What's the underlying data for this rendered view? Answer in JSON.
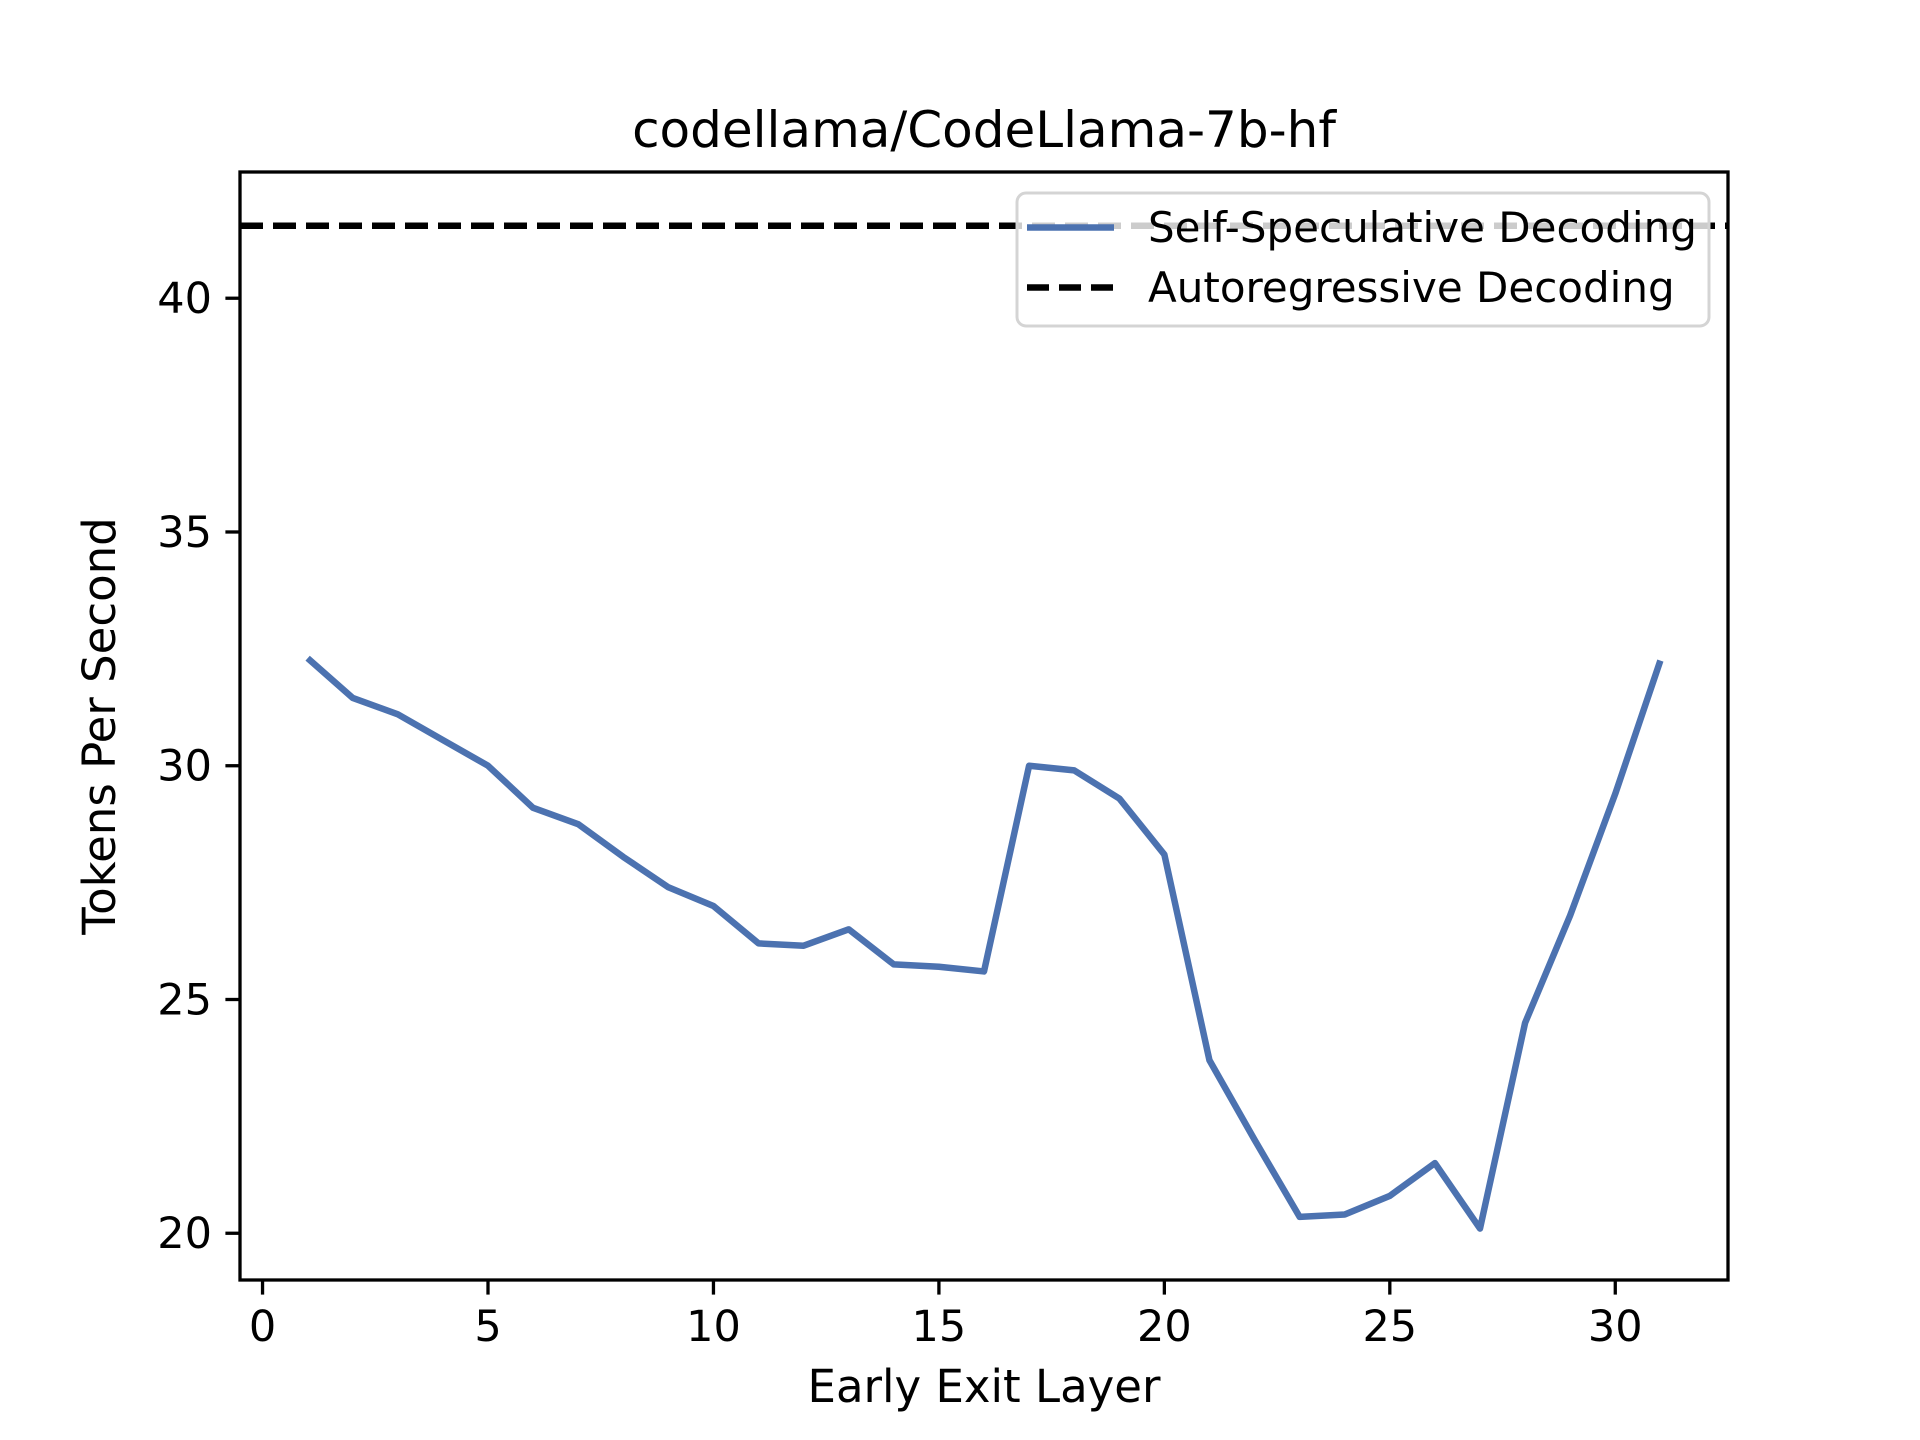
{
  "title": "codellama/CodeLlama-7b-hf",
  "axes": {
    "xlabel": "Early Exit Layer",
    "ylabel": "Tokens Per Second",
    "x_ticks": [
      0,
      5,
      10,
      15,
      20,
      25,
      30
    ],
    "y_ticks": [
      20,
      25,
      30,
      35,
      40
    ],
    "grid": false
  },
  "legend": {
    "position": "upper right",
    "entries": [
      {
        "label": "Self-Speculative Decoding",
        "color": "#4C72B0",
        "style": "solid"
      },
      {
        "label": "Autoregressive Decoding",
        "color": "#000000",
        "style": "dashed"
      }
    ]
  },
  "colors": {
    "series_blue": "#4C72B0",
    "series_black": "#000000",
    "legend_border": "#d4d4d4",
    "legend_fill": "rgba(255,255,255,0.8)"
  },
  "chart_data": {
    "type": "line",
    "title": "codellama/CodeLlama-7b-hf",
    "xlabel": "Early Exit Layer",
    "ylabel": "Tokens Per Second",
    "xlim": [
      -0.5,
      32.5
    ],
    "ylim": [
      19.0,
      42.7
    ],
    "legend_position": "upper right",
    "grid": false,
    "series": [
      {
        "name": "Self-Speculative Decoding",
        "color": "#4C72B0",
        "style": "solid",
        "x": [
          1,
          2,
          3,
          4,
          5,
          6,
          7,
          8,
          9,
          10,
          11,
          12,
          13,
          14,
          15,
          16,
          17,
          18,
          19,
          20,
          21,
          22,
          23,
          24,
          25,
          26,
          27,
          28,
          29,
          30,
          31
        ],
        "values": [
          32.3,
          31.45,
          31.1,
          30.55,
          30.0,
          29.1,
          28.75,
          28.05,
          27.4,
          27.0,
          26.2,
          26.15,
          26.5,
          25.75,
          25.7,
          25.6,
          30.0,
          29.9,
          29.3,
          28.1,
          23.7,
          22.0,
          20.35,
          20.4,
          20.8,
          21.5,
          20.1,
          24.5,
          26.8,
          29.4,
          32.25
        ]
      },
      {
        "name": "Autoregressive Decoding",
        "color": "#000000",
        "style": "dashed",
        "constant_value": 41.55
      }
    ]
  }
}
